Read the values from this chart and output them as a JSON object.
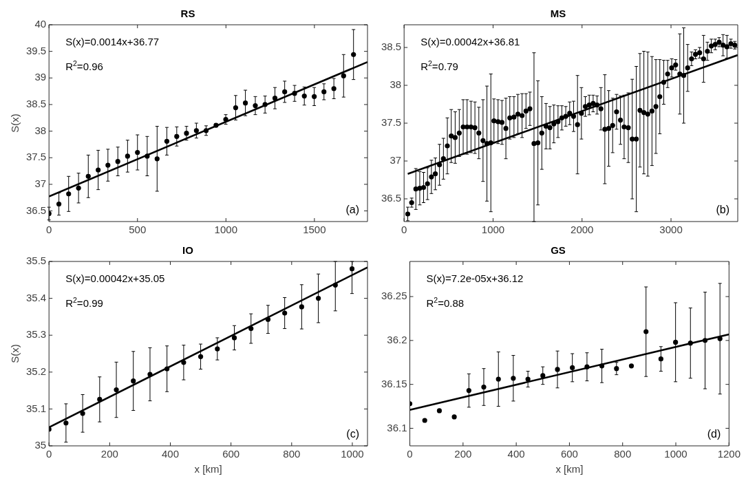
{
  "chart_data": [
    {
      "type": "scatter",
      "title": "RS",
      "ylabel": "S(x)",
      "xlim": [
        0,
        1800
      ],
      "xticks": [
        0,
        500,
        1000,
        1500
      ],
      "ylim": [
        36.3,
        40
      ],
      "yticks": [
        36.5,
        37,
        37.5,
        38,
        38.5,
        39,
        39.5,
        40
      ],
      "annotations": [
        "S(x)=0.0014x+36.77",
        "R$^{2}$=0.96",
        "(a)"
      ],
      "series": [
        {
          "marker": "circle",
          "color": "#000000",
          "x": [
            0,
            56,
            111,
            167,
            222,
            278,
            333,
            389,
            444,
            500,
            555,
            611,
            666,
            722,
            777,
            833,
            888,
            944,
            999,
            1055,
            1110,
            1166,
            1221,
            1277,
            1332,
            1388,
            1443,
            1499,
            1554,
            1610,
            1665,
            1721
          ],
          "values": [
            36.45,
            36.63,
            36.82,
            36.93,
            37.15,
            37.27,
            37.36,
            37.43,
            37.53,
            37.6,
            37.53,
            37.48,
            37.81,
            37.9,
            37.96,
            38.01,
            38.01,
            38.11,
            38.22,
            38.44,
            38.53,
            38.48,
            38.5,
            38.62,
            38.74,
            38.71,
            38.66,
            38.65,
            38.74,
            38.8,
            39.04,
            39.44
          ],
          "errors": [
            0.12,
            0.21,
            0.33,
            0.28,
            0.4,
            0.37,
            0.3,
            0.27,
            0.3,
            0.33,
            0.37,
            0.61,
            0.26,
            0.18,
            0.13,
            0.14,
            0.09,
            0.03,
            0.09,
            0.23,
            0.24,
            0.17,
            0.16,
            0.2,
            0.2,
            0.15,
            0.17,
            0.17,
            0.15,
            0.19,
            0.4,
            0.47
          ]
        },
        {
          "type": "line",
          "marker": "none",
          "color": "#000000",
          "x": [
            0,
            1800
          ],
          "values": [
            36.77,
            39.3
          ]
        }
      ]
    },
    {
      "type": "scatter",
      "title": "MS",
      "xlim": [
        0,
        3750
      ],
      "xticks": [
        0,
        1000,
        2000,
        3000
      ],
      "ylim": [
        36.2,
        38.8
      ],
      "yticks": [
        36.5,
        37,
        37.5,
        38,
        38.5
      ],
      "annotations": [
        "S(x)=0.00042x+36.81",
        "R$^{2}$=0.79",
        "(b)"
      ],
      "series": [
        {
          "marker": "circle",
          "color": "#000000",
          "x": [
            41,
            85,
            132,
            176,
            219,
            263,
            307,
            351,
            398,
            442,
            486,
            530,
            574,
            620,
            664,
            708,
            752,
            796,
            840,
            887,
            931,
            975,
            1010,
            1056,
            1100,
            1144,
            1188,
            1235,
            1279,
            1326,
            1370,
            1414,
            1460,
            1504,
            1548,
            1595,
            1639,
            1683,
            1730,
            1773,
            1817,
            1861,
            1905,
            1949,
            1993,
            2037,
            2081,
            2125,
            2169,
            2212,
            2256,
            2300,
            2344,
            2388,
            2432,
            2473,
            2520,
            2564,
            2610,
            2651,
            2695,
            2739,
            2786,
            2830,
            2874,
            2918,
            2962,
            3008,
            3052,
            3099,
            3143,
            3187,
            3231,
            3275,
            3322,
            3366,
            3409,
            3453,
            3497,
            3541,
            3585,
            3629,
            3673,
            3717
          ],
          "values": [
            36.3,
            36.45,
            36.63,
            36.64,
            36.65,
            36.7,
            36.79,
            36.83,
            36.95,
            37.03,
            37.2,
            37.33,
            37.31,
            37.37,
            37.45,
            37.45,
            37.45,
            37.44,
            37.37,
            37.27,
            37.23,
            37.24,
            37.53,
            37.52,
            37.51,
            37.43,
            37.57,
            37.58,
            37.62,
            37.6,
            37.66,
            37.69,
            37.23,
            37.24,
            37.37,
            37.46,
            37.44,
            37.49,
            37.52,
            37.57,
            37.59,
            37.63,
            37.59,
            37.48,
            37.63,
            37.72,
            37.74,
            37.76,
            37.74,
            37.69,
            37.42,
            37.43,
            37.47,
            37.65,
            37.54,
            37.45,
            37.44,
            37.29,
            37.29,
            37.67,
            37.64,
            37.62,
            37.66,
            37.72,
            37.85,
            38.04,
            38.15,
            38.23,
            38.27,
            38.15,
            38.13,
            38.23,
            38.35,
            38.41,
            38.43,
            38.35,
            38.45,
            38.52,
            38.54,
            38.57,
            38.53,
            38.51,
            38.55,
            38.53
          ],
          "errors": [
            0.09,
            0.06,
            0.27,
            0.22,
            0.2,
            0.21,
            0.22,
            0.21,
            0.27,
            0.27,
            0.37,
            0.35,
            0.34,
            0.31,
            0.36,
            0.36,
            0.34,
            0.34,
            0.34,
            0.54,
            0.76,
            0.91,
            0.29,
            0.29,
            0.29,
            0.4,
            0.28,
            0.27,
            0.26,
            0.29,
            0.23,
            0.22,
            [
              36.2,
              38.43
            ],
            0.82,
            0.48,
            0.3,
            0.28,
            0.25,
            0.21,
            0.16,
            0.13,
            0.15,
            0.2,
            0.65,
            0.34,
            0.13,
            0.13,
            0.11,
            0.12,
            0.28,
            0.72,
            0.5,
            0.36,
            0.23,
            0.32,
            0.42,
            0.46,
            0.79,
            0.96,
            0.75,
            0.81,
            0.82,
            0.72,
            0.62,
            0.49,
            0.29,
            0.18,
            0.12,
            0.07,
            0.53,
            0.63,
            0.31,
            0.09,
            0.06,
            0.07,
            0.31,
            0.12,
            0.09,
            0.07,
            0.06,
            0.14,
            0.15,
            0.06,
            0.05
          ]
        },
        {
          "type": "line",
          "marker": "none",
          "color": "#000000",
          "x": [
            41,
            3750
          ],
          "values": [
            36.83,
            38.4
          ]
        }
      ]
    },
    {
      "type": "scatter",
      "title": "IO",
      "xlabel": "x [km]",
      "ylabel": "S(x)",
      "xlim": [
        0,
        1050
      ],
      "xticks": [
        0,
        200,
        400,
        600,
        800,
        1000
      ],
      "ylim": [
        35,
        35.5
      ],
      "yticks": [
        35,
        35.1,
        35.2,
        35.3,
        35.4,
        35.5
      ],
      "annotations": [
        "S(x)=0.00042x+35.05",
        "R$^{2}$=0.99",
        "(c)"
      ],
      "series": [
        {
          "marker": "circle",
          "color": "#000000",
          "x": [
            0,
            56,
            111,
            167,
            222,
            278,
            333,
            389,
            444,
            500,
            555,
            611,
            666,
            722,
            777,
            833,
            888,
            944,
            999
          ],
          "values": [
            35.045,
            35.062,
            35.088,
            35.126,
            35.152,
            35.176,
            35.194,
            35.209,
            35.226,
            35.242,
            35.263,
            35.293,
            35.318,
            35.343,
            35.36,
            35.377,
            35.4,
            35.436,
            35.48
          ],
          "errors": [
            null,
            0.052,
            0.051,
            0.061,
            0.075,
            0.08,
            0.072,
            0.062,
            0.047,
            0.034,
            0.03,
            0.033,
            0.04,
            0.038,
            0.042,
            0.06,
            0.066,
            [
              35.366,
              35.5
            ],
            [
              35.413,
              35.5
            ]
          ]
        },
        {
          "type": "line",
          "marker": "none",
          "color": "#000000",
          "x": [
            0,
            1050
          ],
          "values": [
            35.05,
            35.484
          ]
        }
      ]
    },
    {
      "type": "scatter",
      "title": "GS",
      "xlabel": "x [km]",
      "xlim": [
        0,
        1200
      ],
      "xticks": [
        0,
        200,
        400,
        600,
        800,
        1000,
        1200
      ],
      "ylim": [
        36.08,
        36.29
      ],
      "yticks": [
        36.1,
        36.15,
        36.2,
        36.25
      ],
      "annotations": [
        "S(x)=7.2e-05x+36.12",
        "R$^{2}$=0.88",
        "(d)"
      ],
      "series": [
        {
          "marker": "circle",
          "color": "#000000",
          "x": [
            0,
            56,
            111,
            167,
            222,
            278,
            333,
            389,
            444,
            500,
            555,
            611,
            666,
            722,
            777,
            833,
            888,
            944,
            999,
            1055,
            1110,
            1166
          ],
          "values": [
            36.128,
            36.109,
            36.12,
            36.113,
            36.143,
            36.147,
            36.156,
            36.157,
            36.156,
            36.16,
            36.167,
            36.169,
            36.17,
            36.171,
            36.168,
            36.171,
            36.21,
            36.179,
            36.198,
            36.197,
            36.2,
            36.202
          ],
          "errors": [
            null,
            null,
            null,
            null,
            0.019,
            0.021,
            0.031,
            0.026,
            0.009,
            0.01,
            0.021,
            0.016,
            0.016,
            0.019,
            0.007,
            null,
            0.051,
            0.014,
            0.045,
            0.04,
            0.055,
            0.063
          ]
        },
        {
          "type": "line",
          "marker": "none",
          "color": "#000000",
          "x": [
            0,
            1200
          ],
          "values": [
            36.121,
            36.207
          ]
        }
      ]
    }
  ]
}
